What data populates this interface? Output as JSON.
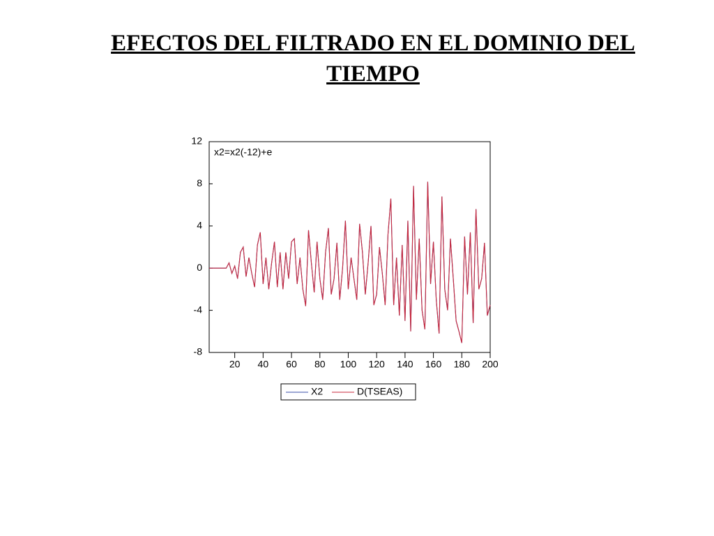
{
  "slide_title": "EFECTOS DEL FILTRADO EN EL DOMINIO DEL TIEMPO",
  "chart_data": {
    "type": "line",
    "annotation": "x2=x2(-12)+e",
    "x": [
      2,
      4,
      6,
      8,
      10,
      12,
      14,
      16,
      18,
      20,
      22,
      24,
      26,
      28,
      30,
      32,
      34,
      36,
      38,
      40,
      42,
      44,
      46,
      48,
      50,
      52,
      54,
      56,
      58,
      60,
      62,
      64,
      66,
      68,
      70,
      72,
      74,
      76,
      78,
      80,
      82,
      84,
      86,
      88,
      90,
      92,
      94,
      96,
      98,
      100,
      102,
      104,
      106,
      108,
      110,
      112,
      114,
      116,
      118,
      120,
      122,
      124,
      126,
      128,
      130,
      132,
      134,
      136,
      138,
      140,
      142,
      144,
      146,
      148,
      150,
      152,
      154,
      156,
      158,
      160,
      162,
      164,
      166,
      168,
      170,
      172,
      174,
      176,
      178,
      180,
      182,
      184,
      186,
      188,
      190,
      192,
      194,
      196,
      198,
      200
    ],
    "series": [
      {
        "name": "X2",
        "color": "#3b4fa8",
        "values": [
          0,
          0,
          0,
          0,
          0,
          0,
          0,
          0.5,
          -0.5,
          0.2,
          -1,
          1.5,
          2,
          -0.8,
          1,
          -0.5,
          -1.8,
          2.2,
          3.4,
          -1.5,
          1,
          -2,
          0.5,
          2.5,
          -1.8,
          1.5,
          -2,
          1.5,
          -1,
          2.5,
          2.8,
          -1.5,
          1,
          -2,
          -3.6,
          3.6,
          0.5,
          -2.3,
          2.5,
          -1,
          -3,
          1.5,
          3.8,
          -2.5,
          -1,
          2.4,
          -3,
          0,
          4.5,
          -2,
          1,
          -1,
          -3,
          4.2,
          1.5,
          -2.5,
          0.5,
          4,
          -3.5,
          -2.5,
          2,
          -0.5,
          -3.5,
          3.2,
          6.6,
          -3.5,
          1,
          -4.5,
          2.2,
          -5,
          4.5,
          -6,
          7.8,
          -3,
          2.8,
          -4,
          -5.8,
          8.2,
          -1.5,
          2.5,
          -3,
          -6.2,
          6.8,
          -2,
          -4,
          2.8,
          -1,
          -5,
          -6,
          -7.1,
          3,
          -2.5,
          3.4,
          -5.2,
          5.6,
          -2,
          -1,
          2.4,
          -4.5,
          -3.5
        ]
      },
      {
        "name": "D(TSEAS)",
        "color": "#c8283c",
        "values": [
          0,
          0,
          0,
          0,
          0,
          0,
          0,
          0.5,
          -0.5,
          0.2,
          -1,
          1.5,
          2,
          -0.8,
          1,
          -0.5,
          -1.8,
          2.2,
          3.4,
          -1.5,
          1,
          -2,
          0.5,
          2.5,
          -1.8,
          1.5,
          -2,
          1.5,
          -1,
          2.5,
          2.8,
          -1.5,
          1,
          -2,
          -3.6,
          3.6,
          0.5,
          -2.3,
          2.5,
          -1,
          -3,
          1.5,
          3.8,
          -2.5,
          -1,
          2.4,
          -3,
          0,
          4.5,
          -2,
          1,
          -1,
          -3,
          4.2,
          1.5,
          -2.5,
          0.5,
          4,
          -3.5,
          -2.5,
          2,
          -0.5,
          -3.5,
          3.2,
          6.6,
          -3.5,
          1,
          -4.5,
          2.2,
          -5,
          4.5,
          -6,
          7.8,
          -3,
          2.8,
          -4,
          -5.8,
          8.2,
          -1.5,
          2.5,
          -3,
          -6.2,
          6.8,
          -2,
          -4,
          2.8,
          -1,
          -5,
          -6,
          -7.1,
          3,
          -2.5,
          3.4,
          -5.2,
          5.6,
          -2,
          -1,
          2.4,
          -4.5,
          -3.5
        ]
      }
    ],
    "xlim": [
      2,
      200
    ],
    "xticks": [
      20,
      40,
      60,
      80,
      100,
      120,
      140,
      160,
      180,
      200
    ],
    "ylim": [
      -8,
      12
    ],
    "yticks": [
      -8,
      -4,
      0,
      4,
      8,
      12
    ],
    "legend": "bottom"
  }
}
